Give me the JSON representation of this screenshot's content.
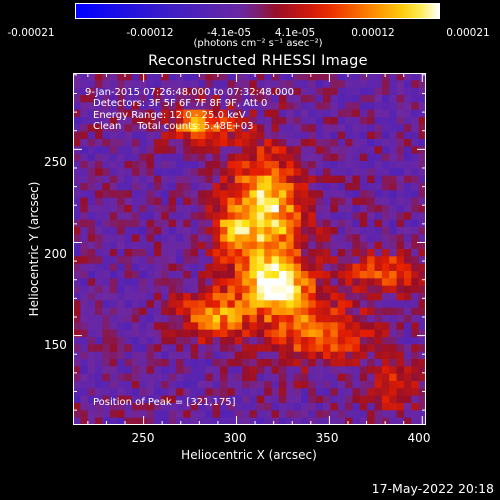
{
  "chart_data": {
    "type": "heatmap",
    "title": "Reconstructed RHESSI Image",
    "xlabel": "Heliocentric X (arcsec)",
    "ylabel": "Heliocentric Y (arcsec)",
    "xlim": [
      212,
      402
    ],
    "ylim": [
      102,
      291
    ],
    "xticks": [
      "250",
      "300",
      "350",
      "400"
    ],
    "yticks": [
      "150",
      "200",
      "250"
    ],
    "colorbar": {
      "ticks": [
        "-0.00021",
        "-0.00012",
        "-4.1e-05",
        "4.1e-05",
        "0.00012",
        "0.00021"
      ],
      "units": "(photons cm⁻² s⁻¹ asec⁻²)",
      "range": [
        -0.00021,
        0.00021
      ]
    },
    "annotations": {
      "time_range": "9-Jan-2015 07:26:48.000 to 07:32:48.000",
      "detectors": "Detectors: 3F 5F 6F 7F 8F 9F, Att 0",
      "energy": "Energy Range: 12.0 - 25.0 keV",
      "method": "Clean     Total counts: 5.48E+03",
      "peak": "Position of Peak = [321,175]"
    },
    "peak_position": [
      321,
      175
    ],
    "sources": [
      {
        "x": 315,
        "y": 215,
        "sx": 15,
        "sy": 24,
        "amp": 0.00021
      },
      {
        "x": 322,
        "y": 176,
        "sx": 12,
        "sy": 9,
        "amp": 0.00021
      },
      {
        "x": 288,
        "y": 161,
        "sx": 13,
        "sy": 9,
        "amp": 0.00016
      },
      {
        "x": 281,
        "y": 263,
        "sx": 12,
        "sy": 7,
        "amp": 0.00016
      },
      {
        "x": 343,
        "y": 152,
        "sx": 20,
        "sy": 12,
        "amp": 0.00014
      },
      {
        "x": 379,
        "y": 184,
        "sx": 14,
        "sy": 8,
        "amp": 0.00012
      },
      {
        "x": 386,
        "y": 124,
        "sx": 9,
        "sy": 9,
        "amp": 0.0001
      },
      {
        "x": 295,
        "y": 203,
        "sx": 6,
        "sy": 9,
        "amp": 0.0001
      }
    ]
  },
  "timestamp": "17-May-2022 20:18"
}
